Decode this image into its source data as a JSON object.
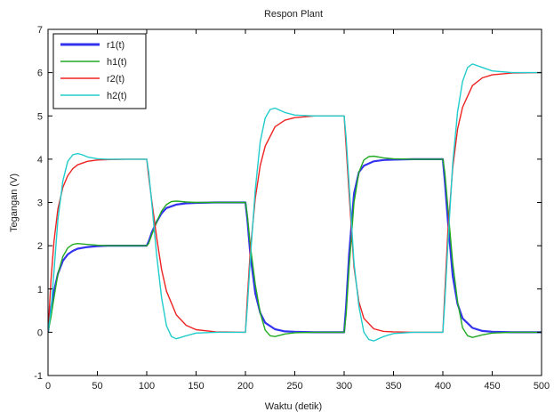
{
  "chart_data": {
    "type": "line",
    "title": "Respon Plant",
    "xlabel": "Waktu (detik)",
    "ylabel": "Tegangan (V)",
    "xlim": [
      0,
      500
    ],
    "ylim": [
      -1,
      7
    ],
    "xticks": [
      0,
      50,
      100,
      150,
      200,
      250,
      300,
      350,
      400,
      450,
      500
    ],
    "yticks": [
      -1,
      0,
      1,
      2,
      3,
      4,
      5,
      6,
      7
    ],
    "grid": false,
    "legend_position": "top-left",
    "series": [
      {
        "name": "r1(t)",
        "color": "#3333ee",
        "x": [
          0,
          3,
          6,
          10,
          15,
          20,
          25,
          30,
          40,
          50,
          60,
          80,
          100,
          102,
          105,
          110,
          115,
          120,
          130,
          140,
          150,
          170,
          200,
          202,
          205,
          210,
          215,
          220,
          230,
          240,
          250,
          270,
          300,
          302,
          305,
          310,
          315,
          320,
          330,
          340,
          350,
          370,
          400,
          402,
          405,
          410,
          415,
          420,
          430,
          440,
          450,
          470,
          500
        ],
        "y": [
          0,
          0.55,
          0.95,
          1.35,
          1.65,
          1.8,
          1.88,
          1.93,
          1.97,
          1.99,
          2.0,
          2.0,
          2.0,
          2.1,
          2.3,
          2.55,
          2.75,
          2.87,
          2.95,
          2.98,
          2.99,
          3.0,
          3.0,
          2.6,
          1.8,
          0.9,
          0.45,
          0.22,
          0.07,
          0.02,
          0.01,
          0,
          0,
          0.6,
          1.8,
          3.2,
          3.7,
          3.85,
          3.95,
          3.98,
          3.99,
          4.0,
          4.0,
          3.5,
          2.6,
          1.3,
          0.65,
          0.32,
          0.1,
          0.03,
          0.01,
          0,
          0
        ]
      },
      {
        "name": "h1(t)",
        "color": "#22aa22",
        "x": [
          0,
          3,
          6,
          10,
          15,
          20,
          25,
          30,
          40,
          50,
          60,
          80,
          100,
          102,
          105,
          110,
          115,
          120,
          125,
          130,
          140,
          150,
          170,
          200,
          202,
          205,
          210,
          215,
          220,
          225,
          230,
          240,
          250,
          270,
          300,
          302,
          305,
          310,
          315,
          320,
          325,
          330,
          340,
          350,
          370,
          400,
          402,
          405,
          410,
          415,
          420,
          425,
          430,
          440,
          450,
          470,
          500
        ],
        "y": [
          0,
          0.35,
          0.8,
          1.35,
          1.75,
          1.95,
          2.03,
          2.05,
          2.03,
          2.01,
          2.0,
          2.0,
          2.0,
          2.05,
          2.25,
          2.55,
          2.8,
          2.95,
          3.02,
          3.03,
          3.01,
          3.0,
          3.0,
          3.0,
          2.7,
          2.0,
          1.1,
          0.45,
          0.05,
          -0.08,
          -0.1,
          -0.04,
          -0.01,
          0,
          0,
          0.4,
          1.5,
          3.0,
          3.7,
          3.98,
          4.06,
          4.07,
          4.03,
          4.01,
          4.0,
          4.0,
          3.7,
          2.9,
          1.6,
          0.7,
          0.1,
          -0.08,
          -0.12,
          -0.06,
          -0.02,
          0,
          0
        ]
      },
      {
        "name": "r2(t)",
        "color": "#ee2222",
        "x": [
          0,
          3,
          6,
          10,
          15,
          20,
          25,
          30,
          40,
          50,
          60,
          80,
          100,
          102,
          105,
          110,
          115,
          120,
          130,
          140,
          150,
          170,
          200,
          202,
          205,
          210,
          215,
          220,
          230,
          240,
          250,
          270,
          300,
          302,
          305,
          310,
          315,
          320,
          330,
          340,
          350,
          370,
          400,
          402,
          405,
          410,
          415,
          420,
          430,
          440,
          450,
          470,
          500
        ],
        "y": [
          0,
          1.2,
          2.1,
          2.85,
          3.35,
          3.62,
          3.78,
          3.87,
          3.95,
          3.98,
          3.99,
          4.0,
          4.0,
          3.6,
          3.05,
          2.2,
          1.45,
          0.95,
          0.4,
          0.16,
          0.06,
          0.01,
          0,
          0.8,
          1.9,
          3.1,
          3.85,
          4.3,
          4.75,
          4.9,
          4.96,
          5.0,
          5.0,
          4.3,
          3.2,
          1.5,
          0.7,
          0.32,
          0.08,
          0.02,
          0.01,
          0,
          0,
          0.9,
          2.3,
          3.8,
          4.7,
          5.2,
          5.7,
          5.88,
          5.95,
          5.99,
          6.0
        ]
      },
      {
        "name": "h2(t)",
        "color": "#22cccc",
        "x": [
          0,
          3,
          6,
          10,
          15,
          20,
          25,
          30,
          35,
          40,
          50,
          60,
          80,
          100,
          102,
          105,
          110,
          115,
          120,
          125,
          130,
          140,
          150,
          170,
          200,
          202,
          205,
          210,
          215,
          220,
          225,
          230,
          240,
          250,
          270,
          300,
          302,
          305,
          310,
          315,
          320,
          325,
          330,
          340,
          350,
          370,
          400,
          402,
          405,
          410,
          415,
          420,
          425,
          430,
          440,
          450,
          470,
          500
        ],
        "y": [
          0,
          0.5,
          1.4,
          2.6,
          3.5,
          3.95,
          4.1,
          4.13,
          4.1,
          4.05,
          4.01,
          4.0,
          4.0,
          4.0,
          3.7,
          3.0,
          1.8,
          0.8,
          0.15,
          -0.1,
          -0.15,
          -0.08,
          -0.02,
          0,
          0,
          0.6,
          1.7,
          3.3,
          4.4,
          4.95,
          5.15,
          5.18,
          5.08,
          5.02,
          5.0,
          5.0,
          4.5,
          3.4,
          1.6,
          0.6,
          0.0,
          -0.17,
          -0.2,
          -0.1,
          -0.03,
          0,
          0,
          0.7,
          2.0,
          3.9,
          5.1,
          5.8,
          6.12,
          6.2,
          6.12,
          6.04,
          6.0,
          6.0
        ]
      }
    ]
  }
}
